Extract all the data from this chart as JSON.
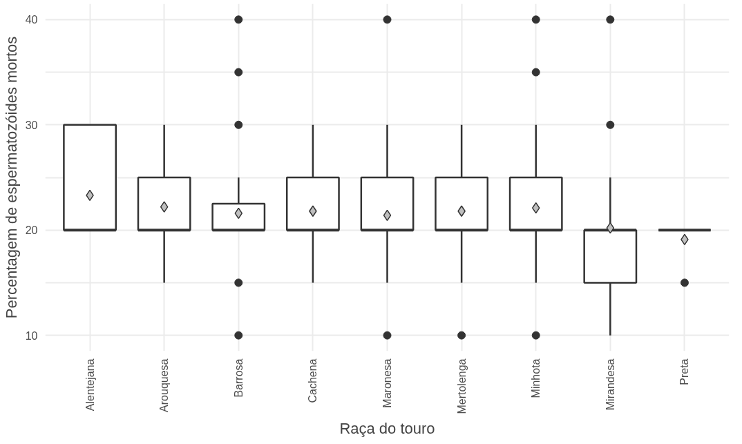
{
  "chart_data": {
    "type": "box",
    "xlabel": "Raça do touro",
    "ylabel": "Percentagem de espermatozóides mortos",
    "categories": [
      "Alentejana",
      "Arouquesa",
      "Barrosa",
      "Cachena",
      "Maronesa",
      "Mertolenga",
      "Minhota",
      "Mirandesa",
      "Preta"
    ],
    "boxes": [
      {
        "low": 20,
        "q1": 20,
        "median": 20,
        "q3": 30,
        "high": 30,
        "mean": 23.3
      },
      {
        "low": 15,
        "q1": 20,
        "median": 20,
        "q3": 25,
        "high": 30,
        "mean": 22.2
      },
      {
        "low": 20,
        "q1": 20,
        "median": 20,
        "q3": 22.5,
        "high": 25,
        "mean": 21.6,
        "outliers": [
          10,
          15,
          30,
          35,
          40
        ]
      },
      {
        "low": 15,
        "q1": 20,
        "median": 20,
        "q3": 25,
        "high": 30,
        "mean": 21.8
      },
      {
        "low": 15,
        "q1": 20,
        "median": 20,
        "q3": 25,
        "high": 30,
        "mean": 21.4,
        "outliers": [
          10,
          40
        ]
      },
      {
        "low": 15,
        "q1": 20,
        "median": 20,
        "q3": 25,
        "high": 30,
        "mean": 21.8,
        "outliers": [
          10
        ]
      },
      {
        "low": 15,
        "q1": 20,
        "median": 20,
        "q3": 25,
        "high": 30,
        "mean": 22.1,
        "outliers": [
          10,
          35,
          40
        ]
      },
      {
        "low": 10,
        "q1": 15,
        "median": 20,
        "q3": 20,
        "high": 25,
        "mean": 20.2,
        "outliers": [
          30,
          40
        ]
      },
      {
        "low": 20,
        "q1": 20,
        "median": 20,
        "q3": 20,
        "high": 20,
        "mean": 19.1,
        "outliers": [
          15
        ]
      }
    ],
    "color": "#333333",
    "ylim": [
      8.5,
      41.5
    ],
    "yticks": [
      10,
      {
        "value": 15,
        "label": null
      },
      20,
      {
        "value": 25,
        "label": null
      },
      30,
      {
        "value": 35,
        "label": null
      },
      40
    ],
    "grid": true
  }
}
